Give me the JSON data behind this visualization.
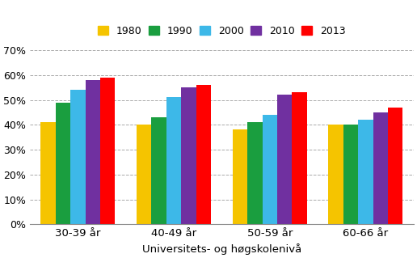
{
  "categories": [
    "30-39 år",
    "40-49 år",
    "50-59 år",
    "60-66 år"
  ],
  "series": {
    "1980": [
      0.41,
      0.4,
      0.38,
      0.4
    ],
    "1990": [
      0.49,
      0.43,
      0.41,
      0.4
    ],
    "2000": [
      0.54,
      0.51,
      0.44,
      0.42
    ],
    "2010": [
      0.58,
      0.55,
      0.52,
      0.45
    ],
    "2013": [
      0.59,
      0.56,
      0.53,
      0.47
    ]
  },
  "colors": {
    "1980": "#F5C400",
    "1990": "#1A9E3F",
    "2000": "#3DB8E8",
    "2010": "#7030A0",
    "2013": "#FF0000"
  },
  "years": [
    "1980",
    "1990",
    "2000",
    "2010",
    "2013"
  ],
  "xlabel": "Universitets- og høgskolenivå",
  "ylabel": "",
  "ylim": [
    0,
    0.7
  ],
  "yticks": [
    0.0,
    0.1,
    0.2,
    0.3,
    0.4,
    0.5,
    0.6,
    0.7
  ],
  "background_color": "#ffffff",
  "grid_color": "#aaaaaa"
}
